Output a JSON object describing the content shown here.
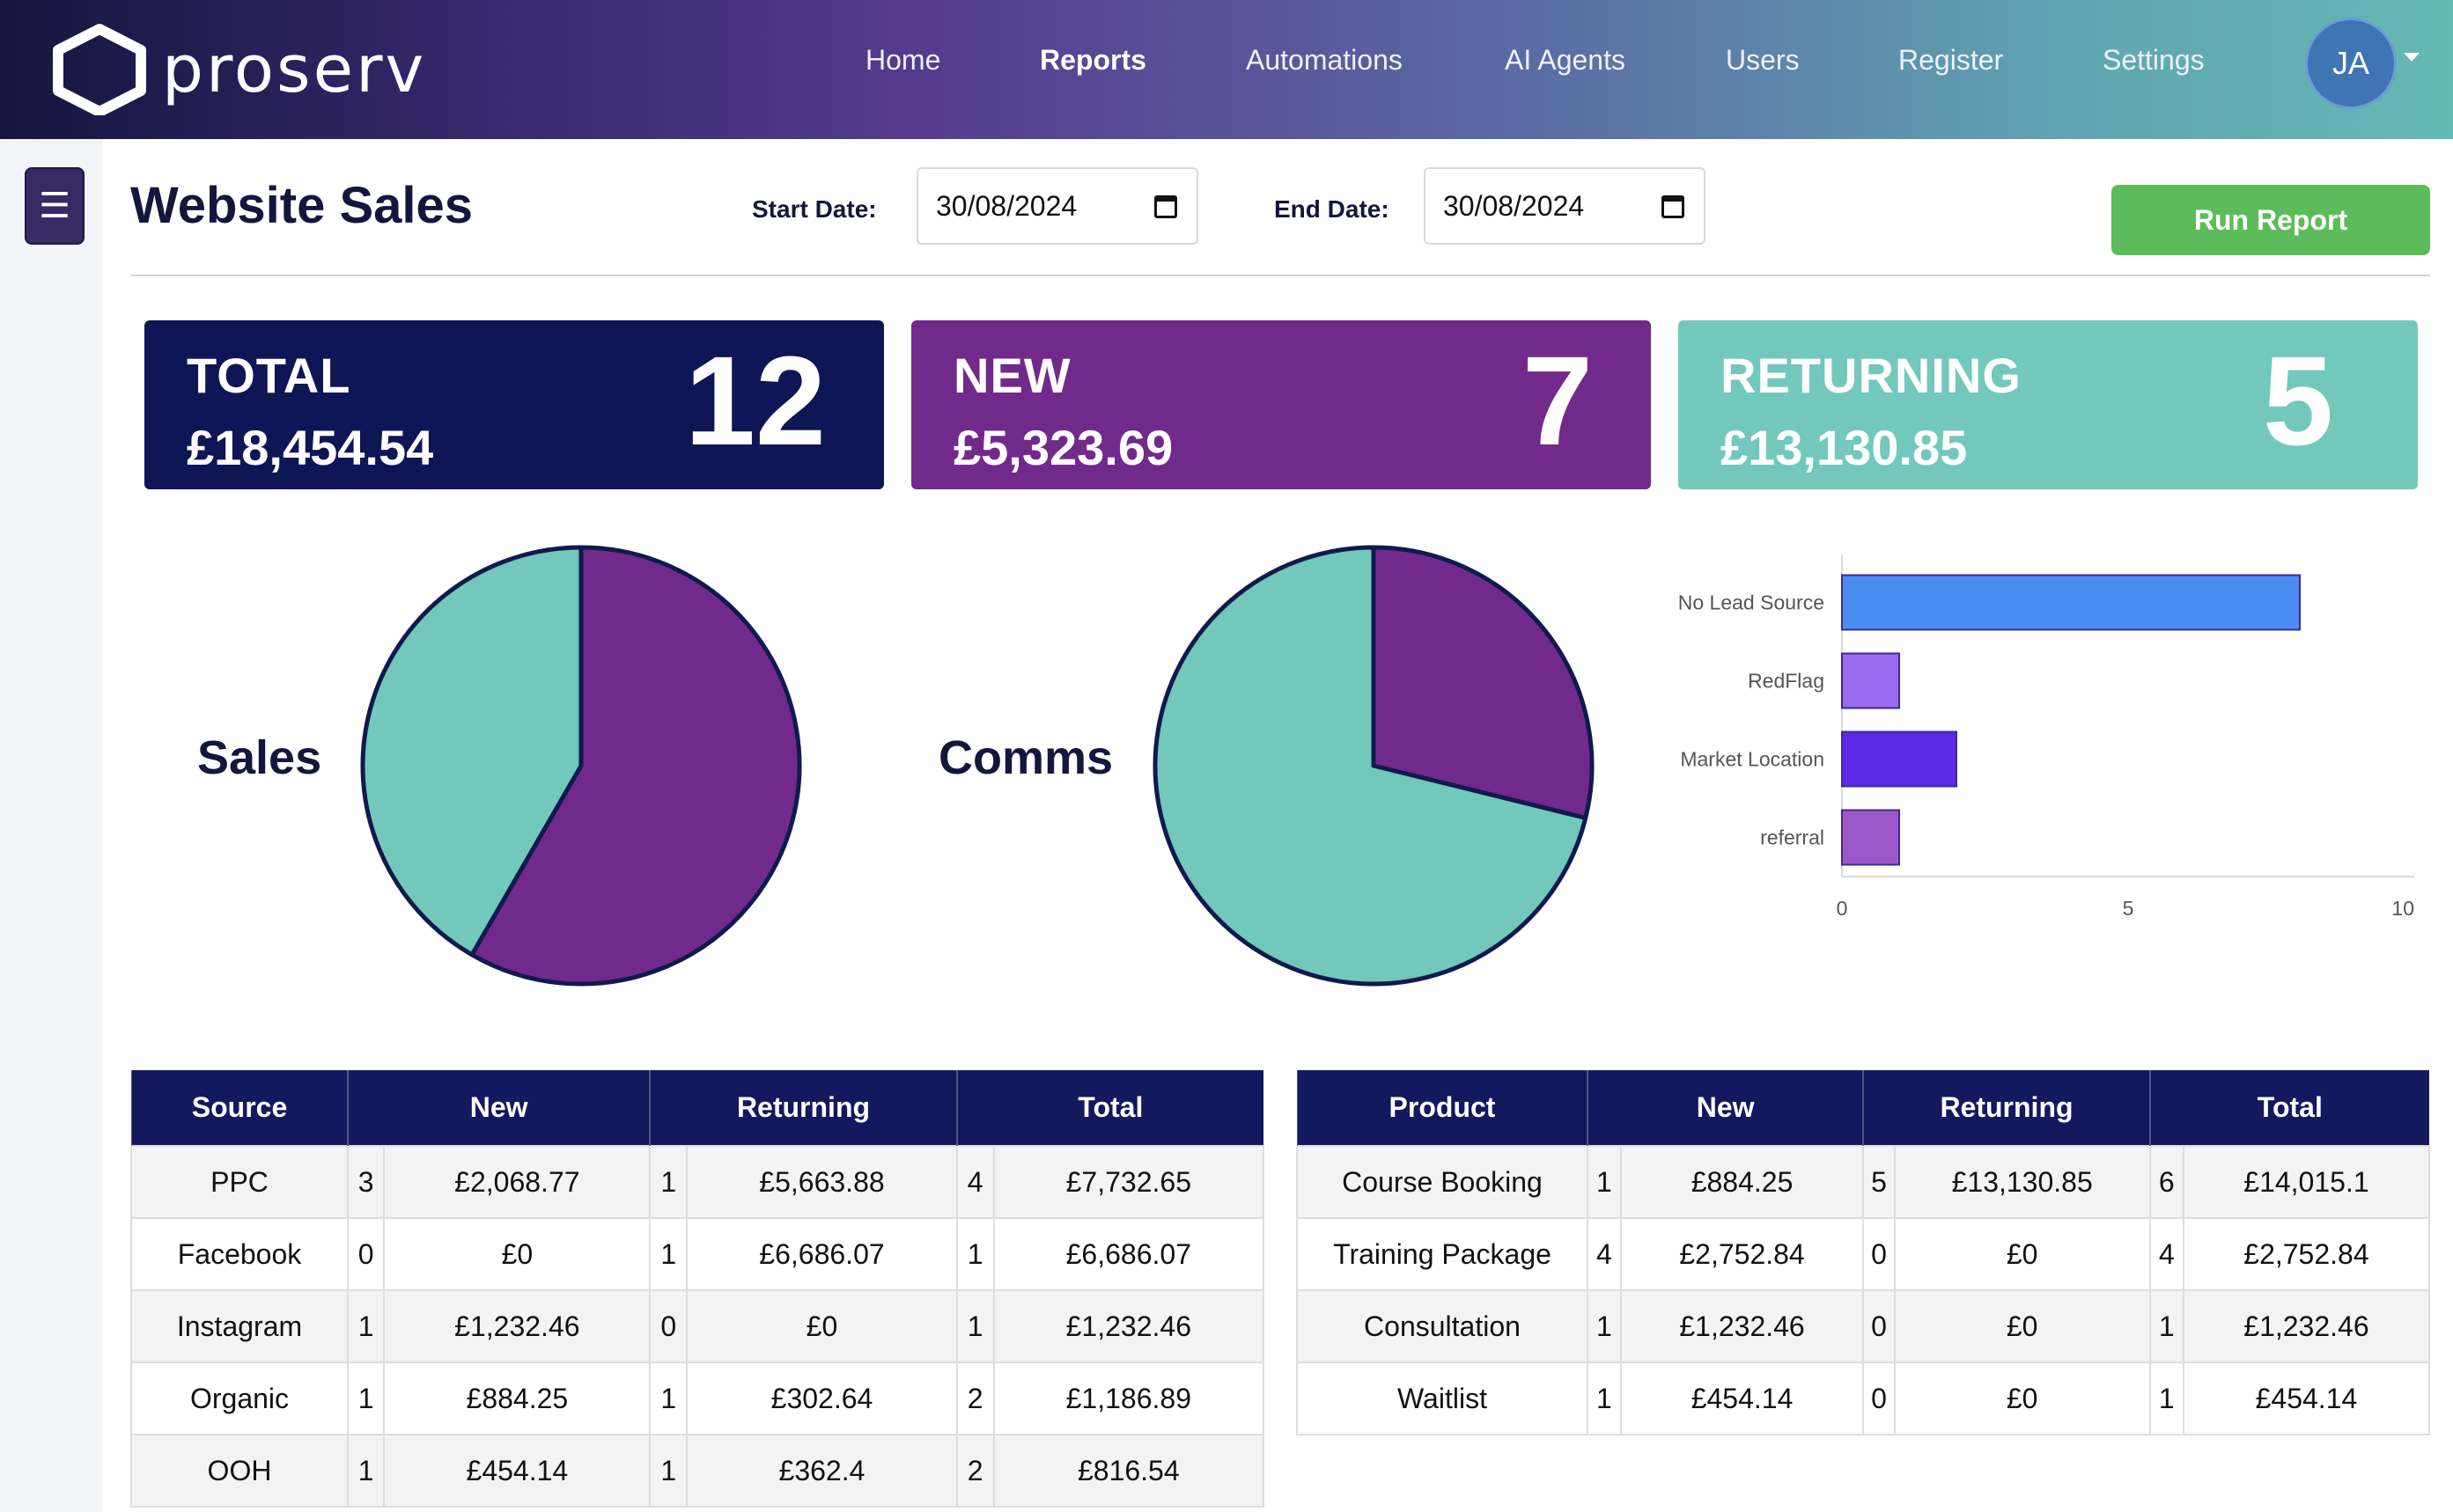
{
  "app": {
    "logo_text": "proserv"
  },
  "nav": {
    "items": [
      "Home",
      "Reports",
      "Automations",
      "AI Agents",
      "Users",
      "Register",
      "Settings"
    ],
    "active": "Reports",
    "user_initials": "JA"
  },
  "sidebar": {
    "menu_glyph": "☰"
  },
  "header": {
    "title": "Website Sales",
    "start_label": "Start Date:",
    "start_value": "30/08/2024",
    "end_label": "End Date:",
    "end_value": "30/08/2024",
    "run_label": "Run Report"
  },
  "cards": {
    "total": {
      "title": "TOTAL",
      "amount": "£18,454.54",
      "count": "12",
      "color": "#0f1656"
    },
    "new": {
      "title": "NEW",
      "amount": "£5,323.69",
      "count": "7",
      "color": "#712a8b"
    },
    "returning": {
      "title": "RETURNING",
      "amount": "£13,130.85",
      "count": "5",
      "color": "#72c8bb"
    }
  },
  "charts": {
    "sales_label": "Sales",
    "comms_label": "Comms"
  },
  "chart_data": [
    {
      "type": "pie",
      "title": "Sales",
      "labels": [
        "New",
        "Returning"
      ],
      "values": [
        7,
        5
      ],
      "colors": [
        "#712a8b",
        "#72c8bb"
      ]
    },
    {
      "type": "pie",
      "title": "Comms",
      "labels": [
        "New",
        "Returning"
      ],
      "values": [
        5323.69,
        13130.85
      ],
      "colors": [
        "#712a8b",
        "#72c8bb"
      ]
    },
    {
      "type": "bar",
      "orientation": "horizontal",
      "categories": [
        "No Lead Source",
        "RedFlag",
        "Market Location",
        "referral"
      ],
      "values": [
        8,
        1,
        2,
        1
      ],
      "colors": [
        "#4a8df2",
        "#9b6cf0",
        "#5b2ae6",
        "#9b57c8"
      ],
      "xlim": [
        0,
        10
      ],
      "xticks": [
        "0",
        "5",
        "10"
      ]
    }
  ],
  "source_table": {
    "headers": [
      "Source",
      "New",
      "Returning",
      "Total"
    ],
    "rows": [
      [
        "PPC",
        "3",
        "£2,068.77",
        "1",
        "£5,663.88",
        "4",
        "£7,732.65"
      ],
      [
        "Facebook",
        "0",
        "£0",
        "1",
        "£6,686.07",
        "1",
        "£6,686.07"
      ],
      [
        "Instagram",
        "1",
        "£1,232.46",
        "0",
        "£0",
        "1",
        "£1,232.46"
      ],
      [
        "Organic",
        "1",
        "£884.25",
        "1",
        "£302.64",
        "2",
        "£1,186.89"
      ],
      [
        "OOH",
        "1",
        "£454.14",
        "1",
        "£362.4",
        "2",
        "£816.54"
      ]
    ]
  },
  "product_table": {
    "headers": [
      "Product",
      "New",
      "Returning",
      "Total"
    ],
    "rows": [
      [
        "Course Booking",
        "1",
        "£884.25",
        "5",
        "£13,130.85",
        "6",
        "£14,015.1"
      ],
      [
        "Training Package",
        "4",
        "£2,752.84",
        "0",
        "£0",
        "4",
        "£2,752.84"
      ],
      [
        "Consultation",
        "1",
        "£1,232.46",
        "0",
        "£0",
        "1",
        "£1,232.46"
      ],
      [
        "Waitlist",
        "1",
        "£454.14",
        "0",
        "£0",
        "1",
        "£454.14"
      ]
    ]
  }
}
